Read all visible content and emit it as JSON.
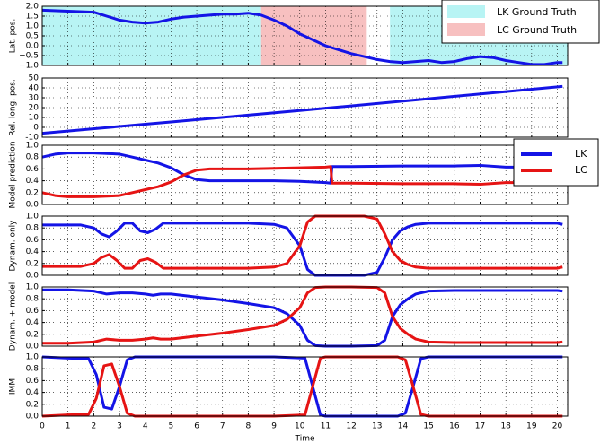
{
  "chart_data": [
    {
      "type": "line",
      "ylabel": "Lat. pos.",
      "xlim": [
        0,
        20.4
      ],
      "xticks": [
        0,
        1,
        2,
        3,
        4,
        5,
        6,
        7,
        8,
        9,
        10,
        11,
        12,
        13,
        14,
        15,
        16,
        17,
        18,
        19,
        20
      ],
      "ylim": [
        -1,
        2
      ],
      "yticks": [
        {
          "value": -1,
          "label": "−1.0"
        },
        {
          "value": -0.5,
          "label": "−0.5"
        },
        {
          "value": 0,
          "label": "0.0"
        },
        {
          "value": 0.5,
          "label": "0.5"
        },
        {
          "value": 1,
          "label": "1.0"
        },
        {
          "value": 1.5,
          "label": "1.5"
        },
        {
          "value": 2,
          "label": "2.0"
        }
      ],
      "grid": true,
      "legend": "upper right",
      "regions": [
        {
          "name": "LK Ground Truth",
          "color": "#b8f4f4",
          "spans": [
            [
              0,
              8.5
            ],
            [
              13.5,
              20.4
            ]
          ]
        },
        {
          "name": "LC Ground Truth",
          "color": "#f7c0c0",
          "spans": [
            [
              8.5,
              12.6
            ]
          ]
        }
      ],
      "x": [
        0,
        1,
        2,
        2.5,
        3,
        3.5,
        4,
        4.5,
        5,
        5.5,
        6,
        6.5,
        7,
        7.5,
        8,
        8.5,
        9,
        9.5,
        10,
        10.5,
        11,
        11.5,
        12,
        12.5,
        13,
        13.5,
        14,
        14.5,
        15,
        15.5,
        16,
        16.5,
        17,
        17.5,
        18,
        18.5,
        19,
        19.5,
        20,
        20.2
      ],
      "series": [
        {
          "color": "#1414e6",
          "values": [
            1.8,
            1.75,
            1.7,
            1.5,
            1.3,
            1.2,
            1.15,
            1.2,
            1.35,
            1.45,
            1.5,
            1.55,
            1.6,
            1.6,
            1.65,
            1.55,
            1.3,
            1.0,
            0.6,
            0.3,
            0.0,
            -0.2,
            -0.4,
            -0.55,
            -0.7,
            -0.8,
            -0.85,
            -0.8,
            -0.75,
            -0.85,
            -0.8,
            -0.65,
            -0.55,
            -0.6,
            -0.75,
            -0.85,
            -0.95,
            -0.95,
            -0.85,
            -0.85
          ]
        }
      ]
    },
    {
      "type": "line",
      "ylabel": "Rel. long. pos.",
      "xlim": [
        0,
        20.4
      ],
      "xticks": [
        0,
        1,
        2,
        3,
        4,
        5,
        6,
        7,
        8,
        9,
        10,
        11,
        12,
        13,
        14,
        15,
        16,
        17,
        18,
        19,
        20
      ],
      "ylim": [
        -10,
        50
      ],
      "yticks": [
        -10,
        0,
        10,
        20,
        30,
        40,
        50
      ],
      "grid": true,
      "x": [
        0,
        5,
        10,
        15,
        20.2
      ],
      "series": [
        {
          "color": "#1414e6",
          "values": [
            -6,
            5.5,
            17,
            29,
            41.5
          ]
        }
      ]
    },
    {
      "type": "line",
      "ylabel": "Model prediction",
      "xlim": [
        0,
        20.4
      ],
      "xticks": [
        0,
        1,
        2,
        3,
        4,
        5,
        6,
        7,
        8,
        9,
        10,
        11,
        12,
        13,
        14,
        15,
        16,
        17,
        18,
        19,
        20
      ],
      "ylim": [
        0,
        1
      ],
      "yticks": [
        {
          "value": 0,
          "label": "0.0"
        },
        0.2,
        0.4,
        0.6,
        0.8,
        {
          "value": 1,
          "label": "1.0"
        }
      ],
      "grid": true,
      "legend": "upper right",
      "x": [
        0,
        0.5,
        1,
        2,
        3,
        3.5,
        4,
        4.5,
        5,
        5.5,
        6,
        6.5,
        7,
        8,
        9,
        10,
        11,
        11.2,
        11.25,
        12,
        14,
        16,
        17,
        18,
        19,
        20,
        20.2
      ],
      "series": [
        {
          "name": "LK",
          "color": "#1414e6",
          "values": [
            0.8,
            0.85,
            0.87,
            0.87,
            0.85,
            0.8,
            0.75,
            0.7,
            0.62,
            0.5,
            0.42,
            0.4,
            0.4,
            0.4,
            0.4,
            0.39,
            0.37,
            0.36,
            0.64,
            0.64,
            0.65,
            0.65,
            0.66,
            0.63,
            0.63,
            0.64,
            0.63
          ]
        },
        {
          "name": "LC",
          "color": "#e61414",
          "values": [
            0.2,
            0.15,
            0.13,
            0.13,
            0.15,
            0.2,
            0.25,
            0.3,
            0.38,
            0.5,
            0.58,
            0.6,
            0.6,
            0.6,
            0.61,
            0.62,
            0.63,
            0.64,
            0.36,
            0.36,
            0.35,
            0.35,
            0.34,
            0.37,
            0.37,
            0.36,
            0.37
          ]
        }
      ]
    },
    {
      "type": "line",
      "ylabel": "Dynam. only",
      "xlim": [
        0,
        20.4
      ],
      "xticks": [
        0,
        1,
        2,
        3,
        4,
        5,
        6,
        7,
        8,
        9,
        10,
        11,
        12,
        13,
        14,
        15,
        16,
        17,
        18,
        19,
        20
      ],
      "ylim": [
        0,
        1
      ],
      "yticks": [
        {
          "value": 0,
          "label": "0.0"
        },
        0.2,
        0.4,
        0.6,
        0.8,
        {
          "value": 1,
          "label": "1.0"
        }
      ],
      "grid": true,
      "x": [
        0,
        0.5,
        1,
        1.5,
        2,
        2.3,
        2.6,
        2.9,
        3.2,
        3.5,
        3.8,
        4.1,
        4.4,
        4.7,
        5,
        6,
        7,
        8,
        9,
        9.5,
        10,
        10.3,
        10.6,
        11,
        12,
        12.5,
        13,
        13.3,
        13.6,
        13.9,
        14.2,
        14.5,
        15,
        16,
        17,
        18,
        19,
        20,
        20.2
      ],
      "series": [
        {
          "color": "#1414e6",
          "values": [
            0.85,
            0.85,
            0.85,
            0.85,
            0.8,
            0.7,
            0.65,
            0.75,
            0.88,
            0.88,
            0.75,
            0.72,
            0.78,
            0.88,
            0.88,
            0.88,
            0.88,
            0.88,
            0.86,
            0.8,
            0.5,
            0.1,
            0,
            0,
            0,
            0,
            0.05,
            0.3,
            0.6,
            0.75,
            0.82,
            0.86,
            0.88,
            0.88,
            0.88,
            0.88,
            0.88,
            0.88,
            0.86
          ]
        },
        {
          "color": "#e61414",
          "values": [
            0.15,
            0.15,
            0.15,
            0.15,
            0.2,
            0.3,
            0.35,
            0.25,
            0.12,
            0.12,
            0.25,
            0.28,
            0.22,
            0.12,
            0.12,
            0.12,
            0.12,
            0.12,
            0.14,
            0.2,
            0.5,
            0.9,
            1,
            1,
            1,
            1,
            0.95,
            0.7,
            0.4,
            0.25,
            0.18,
            0.14,
            0.12,
            0.12,
            0.12,
            0.12,
            0.12,
            0.12,
            0.14
          ]
        }
      ]
    },
    {
      "type": "line",
      "ylabel": "Dynam. + model",
      "xlim": [
        0,
        20.4
      ],
      "xticks": [
        0,
        1,
        2,
        3,
        4,
        5,
        6,
        7,
        8,
        9,
        10,
        11,
        12,
        13,
        14,
        15,
        16,
        17,
        18,
        19,
        20
      ],
      "ylim": [
        0,
        1
      ],
      "yticks": [
        {
          "value": 0,
          "label": "0.0"
        },
        0.2,
        0.4,
        0.6,
        0.8,
        {
          "value": 1,
          "label": "1.0"
        }
      ],
      "grid": true,
      "x": [
        0,
        1,
        2,
        2.5,
        3,
        3.5,
        4,
        4.3,
        4.6,
        5,
        6,
        7,
        8,
        9,
        9.5,
        10,
        10.3,
        10.6,
        11,
        12,
        13,
        13.3,
        13.6,
        13.9,
        14.2,
        14.5,
        15,
        16,
        17,
        18,
        19,
        20,
        20.2
      ],
      "series": [
        {
          "color": "#1414e6",
          "values": [
            0.95,
            0.95,
            0.93,
            0.88,
            0.9,
            0.9,
            0.88,
            0.86,
            0.88,
            0.88,
            0.83,
            0.78,
            0.72,
            0.65,
            0.55,
            0.35,
            0.1,
            0.01,
            0,
            0,
            0.01,
            0.1,
            0.5,
            0.7,
            0.8,
            0.88,
            0.93,
            0.94,
            0.94,
            0.94,
            0.94,
            0.94,
            0.93
          ]
        },
        {
          "color": "#e61414",
          "values": [
            0.05,
            0.05,
            0.07,
            0.12,
            0.1,
            0.1,
            0.12,
            0.14,
            0.12,
            0.12,
            0.17,
            0.22,
            0.28,
            0.35,
            0.45,
            0.65,
            0.9,
            0.99,
            1,
            1,
            0.99,
            0.9,
            0.5,
            0.3,
            0.2,
            0.12,
            0.07,
            0.06,
            0.06,
            0.06,
            0.06,
            0.06,
            0.07
          ]
        }
      ]
    },
    {
      "type": "line",
      "ylabel": "IMM",
      "xlabel": "Time",
      "xlim": [
        0,
        20.4
      ],
      "xticks": [
        0,
        1,
        2,
        3,
        4,
        5,
        6,
        7,
        8,
        9,
        10,
        11,
        12,
        13,
        14,
        15,
        16,
        17,
        18,
        19,
        20
      ],
      "xticklabels": true,
      "ylim": [
        0,
        1
      ],
      "yticks": [
        {
          "value": 0,
          "label": "0.0"
        },
        0.2,
        0.4,
        0.6,
        0.8,
        {
          "value": 1,
          "label": "1.0"
        }
      ],
      "grid": true,
      "x": [
        0,
        1,
        1.8,
        2.1,
        2.4,
        2.7,
        3,
        3.3,
        3.6,
        4,
        9,
        10.2,
        10.5,
        10.8,
        11,
        13.8,
        14.1,
        14.4,
        14.7,
        15,
        20.2
      ],
      "series": [
        {
          "color": "#1414e6",
          "values": [
            1,
            0.98,
            0.97,
            0.7,
            0.15,
            0.12,
            0.5,
            0.95,
            1,
            1,
            1,
            0.98,
            0.5,
            0.02,
            0,
            0,
            0.05,
            0.5,
            0.97,
            1,
            1
          ]
        },
        {
          "color": "#e61414",
          "values": [
            0,
            0.02,
            0.03,
            0.3,
            0.85,
            0.88,
            0.5,
            0.05,
            0,
            0,
            0,
            0.02,
            0.5,
            0.98,
            1,
            1,
            0.95,
            0.5,
            0.03,
            0,
            0
          ]
        }
      ]
    }
  ]
}
